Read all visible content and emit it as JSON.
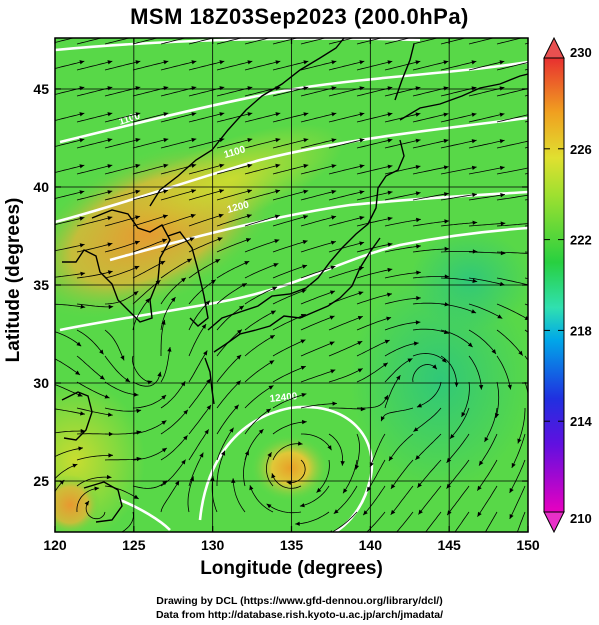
{
  "title": "MSM 18Z03Sep2023 (200.0hPa)",
  "xlabel": "Longitude (degrees)",
  "ylabel": "Latitude  (degrees)",
  "credits": {
    "line1": "Drawing by DCL (https://www.gfd-dennou.org/library/dcl/)",
    "line2": "Data from http://database.rish.kyoto-u.ac.jp/arch/jmadata/"
  },
  "map": {
    "lon_range": [
      120,
      150
    ],
    "lat_range": [
      22.4,
      47.6
    ],
    "lon_ticks": [
      120,
      125,
      130,
      135,
      140,
      145,
      150
    ],
    "lat_ticks": [
      25,
      30,
      35,
      40,
      45
    ],
    "field_colors": {
      "base": "#58d848",
      "warm": "#e8a028",
      "yellow": "#c8d830",
      "cool": "#30c878"
    },
    "contour_labels": [
      "1100",
      "1100",
      "1200",
      "12400"
    ]
  },
  "colorbar": {
    "min": 210,
    "max": 230,
    "tick_labels": [
      "230",
      "226",
      "222",
      "218",
      "214",
      "210"
    ],
    "tick_values": [
      230,
      226,
      222,
      218,
      214,
      210
    ],
    "stops": [
      "#e800c0",
      "#2020e0",
      "#00a8e8",
      "#30e0b0",
      "#28d040",
      "#90e030",
      "#d8e030",
      "#f0a020",
      "#e83030"
    ]
  }
}
